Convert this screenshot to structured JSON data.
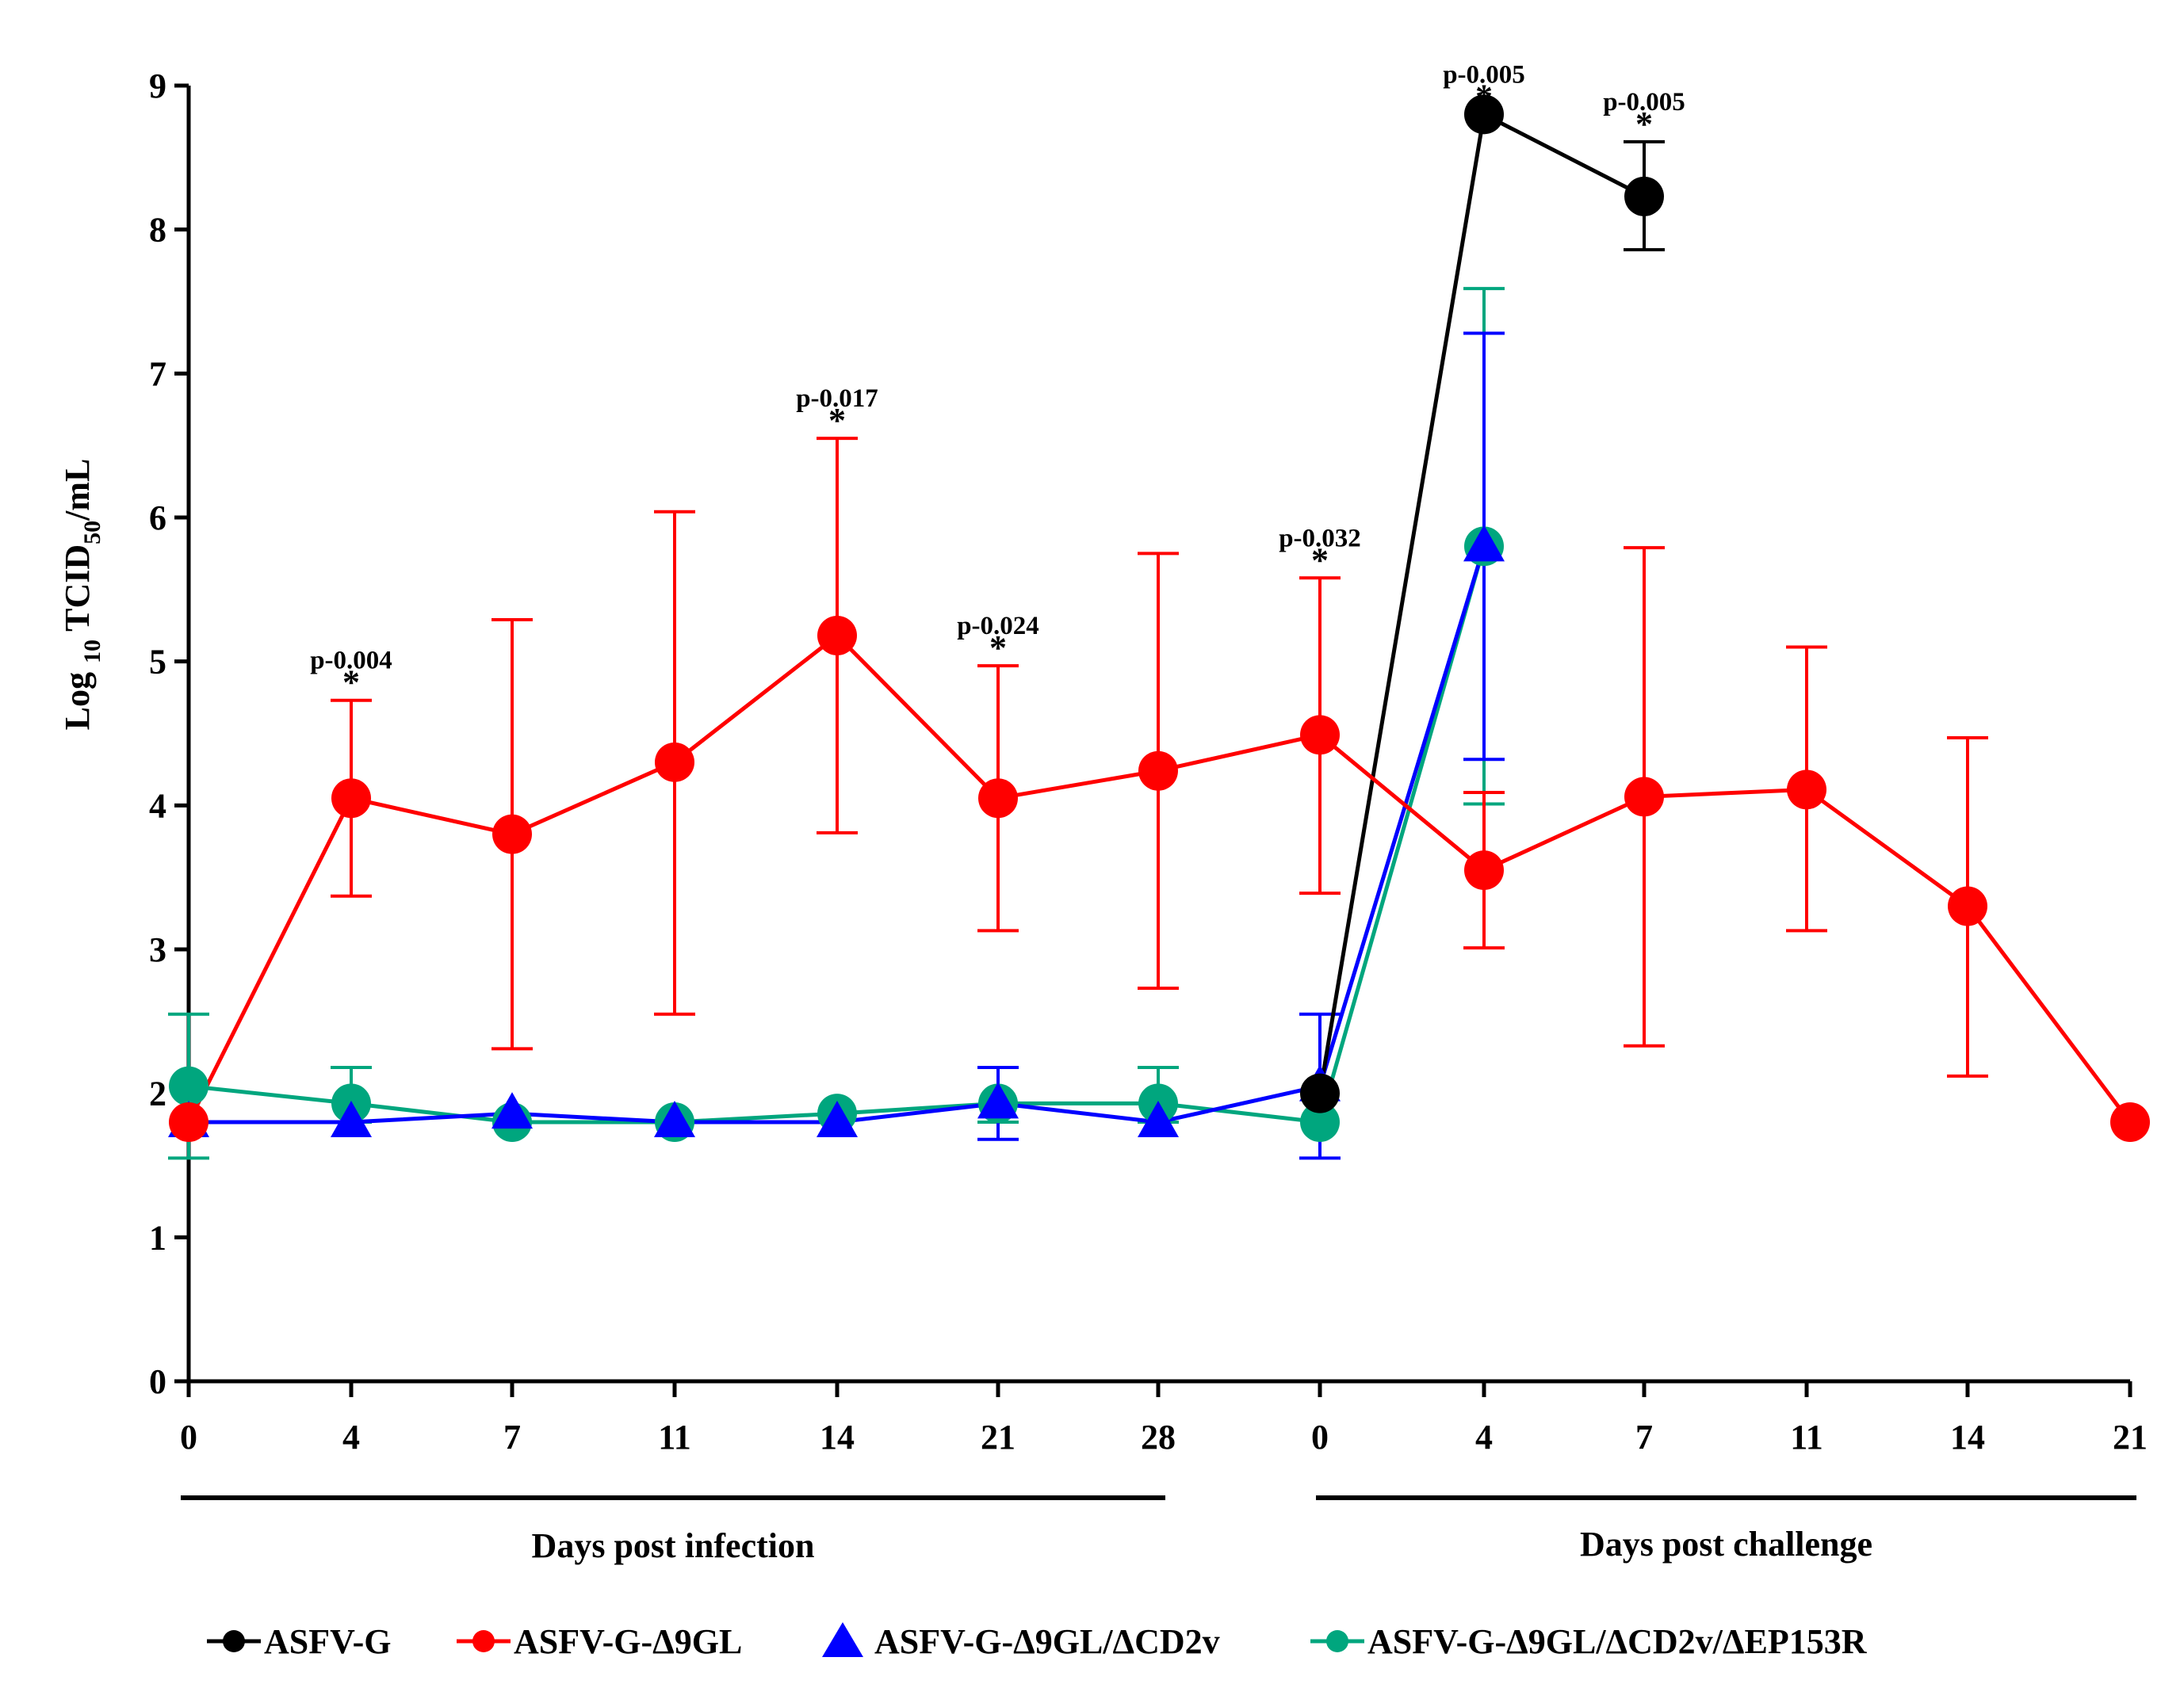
{
  "chart_data": {
    "type": "line",
    "ylabel": "Log 10 TCID50/mL",
    "ylabel_parts": {
      "pre": "Log ",
      "sub1": "10",
      "mid": " TCID",
      "sub2": "50",
      "post": "/mL"
    },
    "ylim": [
      0,
      9
    ],
    "yticks": [
      "0",
      "1",
      "2",
      "3",
      "4",
      "5",
      "6",
      "7",
      "8",
      "9"
    ],
    "x_tick_labels": [
      "0",
      "4",
      "7",
      "11",
      "14",
      "21",
      "28",
      "0",
      "4",
      "7",
      "11",
      "14",
      "21"
    ],
    "groups": [
      {
        "label": "Days post infection",
        "start_index": 0,
        "end_index": 6
      },
      {
        "label": "Days post challenge",
        "start_index": 7,
        "end_index": 12
      }
    ],
    "series": [
      {
        "name": "ASFV-G",
        "color": "#000000",
        "marker": "circle",
        "points": [
          {
            "i": 7,
            "y": 2.0
          },
          {
            "i": 8,
            "y": 8.8
          },
          {
            "i": 9,
            "y": 8.23,
            "err": [
              7.86,
              8.61
            ]
          }
        ]
      },
      {
        "name": "ASFV-G-Δ9GL",
        "color": "#ff0000",
        "marker": "circle",
        "points": [
          {
            "i": 0,
            "y": 1.8
          },
          {
            "i": 1,
            "y": 4.05,
            "err": [
              3.37,
              4.73
            ]
          },
          {
            "i": 2,
            "y": 3.8,
            "err": [
              2.31,
              5.29
            ]
          },
          {
            "i": 3,
            "y": 4.3,
            "err": [
              2.55,
              6.04
            ]
          },
          {
            "i": 4,
            "y": 5.18,
            "err": [
              3.81,
              6.55
            ]
          },
          {
            "i": 5,
            "y": 4.05,
            "err": [
              3.13,
              4.97
            ]
          },
          {
            "i": 6,
            "y": 4.24,
            "err": [
              2.73,
              5.75
            ]
          },
          {
            "i": 7,
            "y": 4.49,
            "err": [
              3.39,
              5.58
            ]
          },
          {
            "i": 8,
            "y": 3.55,
            "err": [
              3.01,
              4.09
            ]
          },
          {
            "i": 9,
            "y": 4.06,
            "err": [
              2.33,
              5.79
            ]
          },
          {
            "i": 10,
            "y": 4.11,
            "err": [
              3.13,
              5.1
            ]
          },
          {
            "i": 11,
            "y": 3.3,
            "err": [
              2.12,
              4.47
            ]
          },
          {
            "i": 12,
            "y": 1.8
          }
        ]
      },
      {
        "name": "ASFV-G-Δ9GL/ΔCD2v",
        "color": "#0000ff",
        "marker": "triangle",
        "points": [
          {
            "i": 0,
            "y": 1.8
          },
          {
            "i": 1,
            "y": 1.8
          },
          {
            "i": 2,
            "y": 1.86
          },
          {
            "i": 3,
            "y": 1.8
          },
          {
            "i": 4,
            "y": 1.8
          },
          {
            "i": 5,
            "y": 1.93,
            "err": [
              1.68,
              2.18
            ]
          },
          {
            "i": 6,
            "y": 1.8
          },
          {
            "i": 7,
            "y": 2.05,
            "err": [
              1.55,
              2.55
            ]
          },
          {
            "i": 8,
            "y": 5.8,
            "err": [
              4.32,
              7.28
            ]
          }
        ]
      },
      {
        "name": "ASFV-G-Δ9GL/ΔCD2v/ΔEP153R",
        "color": "#00a67e",
        "marker": "circle",
        "points": [
          {
            "i": 0,
            "y": 2.05,
            "err": [
              1.55,
              2.55
            ]
          },
          {
            "i": 1,
            "y": 1.93,
            "err": [
              1.8,
              2.18
            ]
          },
          {
            "i": 2,
            "y": 1.8
          },
          {
            "i": 3,
            "y": 1.8
          },
          {
            "i": 4,
            "y": 1.86
          },
          {
            "i": 5,
            "y": 1.93,
            "err": [
              1.8,
              2.18
            ]
          },
          {
            "i": 6,
            "y": 1.93,
            "err": [
              1.8,
              2.18
            ]
          },
          {
            "i": 7,
            "y": 1.8
          },
          {
            "i": 8,
            "y": 5.8,
            "err": [
              4.01,
              7.59
            ]
          }
        ]
      }
    ],
    "annotations": [
      {
        "i": 1,
        "text": "p-0.004",
        "y": 4.73
      },
      {
        "i": 4,
        "text": "p-0.017",
        "y": 6.55
      },
      {
        "i": 5,
        "text": "p-0.024",
        "y": 4.97
      },
      {
        "i": 7,
        "text": "p-0.032",
        "y": 5.58
      },
      {
        "i": 8,
        "text": "p-0.005",
        "y": 8.8
      },
      {
        "i": 9,
        "text": "p-0.005",
        "y": 8.61
      }
    ],
    "star": "*",
    "legend_position": "bottom"
  }
}
